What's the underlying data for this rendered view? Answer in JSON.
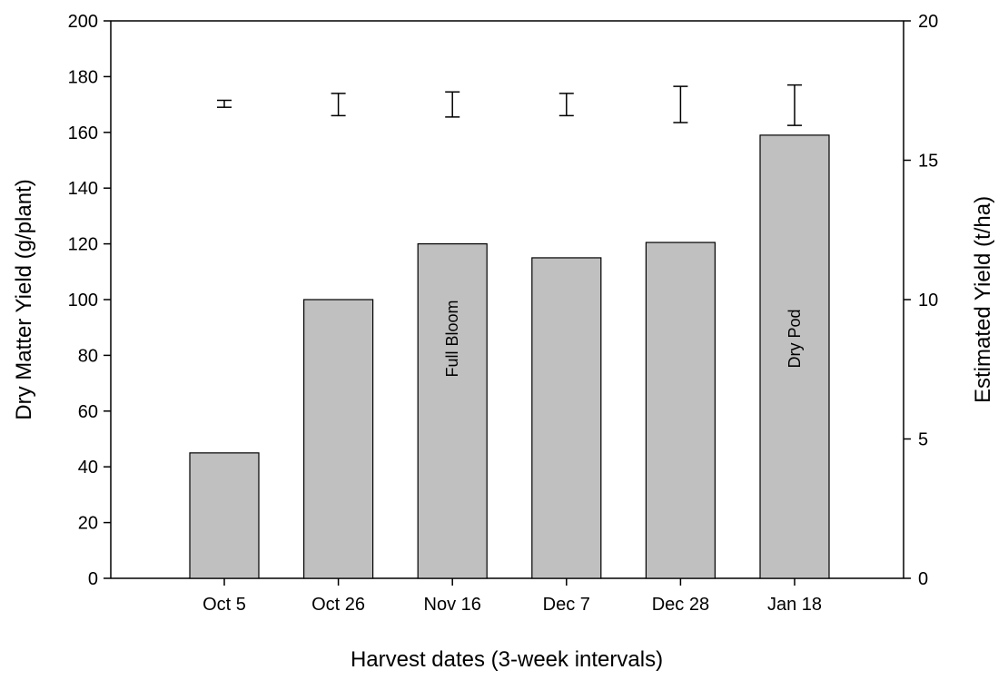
{
  "chart_data": {
    "type": "bar",
    "title": "",
    "xlabel": "Harvest dates (3-week intervals)",
    "ylabel": "Dry Matter Yield (g/plant)",
    "y2label": "Estimated Yield (t/ha)",
    "ylim": [
      0,
      200
    ],
    "y2lim": [
      0,
      20
    ],
    "yticks": [
      0,
      20,
      40,
      60,
      80,
      100,
      120,
      140,
      160,
      180,
      200
    ],
    "y2ticks": [
      0,
      5,
      10,
      15,
      20
    ],
    "grid": false,
    "bar_color": "#c0c0c0",
    "categories": [
      "Oct 5",
      "Oct 26",
      "Nov 16",
      "Dec 7",
      "Dec 28",
      "Jan 18"
    ],
    "values": [
      45,
      100,
      120,
      115,
      120.5,
      159
    ],
    "bar_annotations": [
      "",
      "",
      "Full Bloom",
      "",
      "",
      "Dry Pod"
    ],
    "error_bars": [
      {
        "center": 170,
        "low": 169,
        "high": 171.5
      },
      {
        "center": 170,
        "low": 166,
        "high": 174
      },
      {
        "center": 170,
        "low": 165.5,
        "high": 174.5
      },
      {
        "center": 170,
        "low": 166,
        "high": 174
      },
      {
        "center": 170,
        "low": 163.5,
        "high": 176.5
      },
      {
        "center": 170,
        "low": 162.5,
        "high": 177
      }
    ]
  }
}
